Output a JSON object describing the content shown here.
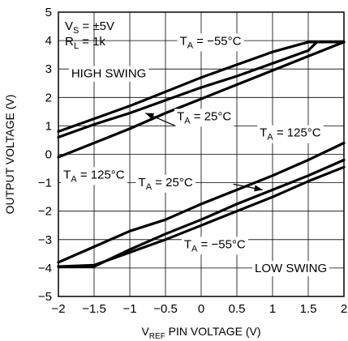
{
  "chart_data": {
    "type": "line",
    "xlabel": {
      "main": "V",
      "sub": "REF",
      "rest": " PIN VOLTAGE (V)"
    },
    "ylabel": "OUTPUT VOLTAGE (V)",
    "xlim": [
      -2,
      2
    ],
    "ylim": [
      -5,
      5
    ],
    "x_ticks": [
      -2,
      -1.5,
      -1,
      -0.5,
      0,
      0.5,
      1,
      1.5,
      2
    ],
    "x_tick_labels": [
      "−2",
      "−1.5",
      "−1",
      "−0.5",
      "0",
      "0.5",
      "1",
      "1.5",
      "2"
    ],
    "y_ticks": [
      -5,
      -4,
      -3,
      -2,
      -1,
      0,
      1,
      2,
      3,
      4,
      5
    ],
    "y_tick_labels": [
      "−5",
      "−4",
      "−3",
      "−2",
      "−1",
      "0",
      "1",
      "2",
      "3",
      "4",
      "5"
    ],
    "grid": true,
    "conditions": [
      {
        "main": "V",
        "sub": "S",
        "rest": " = ±5V"
      },
      {
        "main": "R",
        "sub": "L",
        "rest": " = 1k"
      }
    ],
    "series": [
      {
        "group": "high",
        "temp": "−55°C",
        "x": [
          -2,
          -1.5,
          -1,
          -0.5,
          0,
          0.5,
          1,
          1.5,
          2
        ],
        "y": [
          0.8,
          1.25,
          1.7,
          2.2,
          2.7,
          3.15,
          3.6,
          3.95,
          3.95
        ]
      },
      {
        "group": "high",
        "temp": "25°C",
        "x": [
          -2,
          -1.5,
          -1,
          -0.5,
          0,
          0.5,
          1,
          1.5,
          1.62,
          2
        ],
        "y": [
          0.6,
          1.05,
          1.45,
          1.9,
          2.35,
          2.75,
          3.2,
          3.65,
          3.95,
          3.95
        ]
      },
      {
        "group": "high",
        "temp": "125°C",
        "x": [
          -2,
          -1.5,
          -1,
          -0.5,
          0,
          0.5,
          1,
          1.5,
          2
        ],
        "y": [
          -0.1,
          0.4,
          0.9,
          1.45,
          1.95,
          2.45,
          2.95,
          3.45,
          3.95
        ]
      },
      {
        "group": "low",
        "temp": "125°C",
        "x": [
          -2,
          -1.5,
          -1,
          -0.5,
          0,
          0.5,
          1,
          1.5,
          2
        ],
        "y": [
          -3.8,
          -3.25,
          -2.7,
          -2.3,
          -1.75,
          -1.25,
          -0.75,
          -0.2,
          0.4
        ]
      },
      {
        "group": "low",
        "temp": "25°C",
        "x": [
          -2,
          -1.5,
          -1,
          -0.5,
          0,
          0.5,
          1,
          1.5,
          2
        ],
        "y": [
          -3.95,
          -3.95,
          -3.35,
          -2.8,
          -2.3,
          -1.75,
          -1.25,
          -0.75,
          -0.2
        ]
      },
      {
        "group": "low",
        "temp": "−55°C",
        "x": [
          -2,
          -1.5,
          -1,
          -0.5,
          0,
          0.5,
          1,
          1.5,
          2
        ],
        "y": [
          -3.95,
          -3.9,
          -3.45,
          -3.0,
          -2.5,
          -2.0,
          -1.5,
          -0.95,
          -0.45
        ]
      }
    ],
    "annotations": [
      {
        "id": "ta-neg55-high",
        "main": "T",
        "sub": "A",
        "rest": " = −55°C",
        "x": -0.3,
        "y": 3.85,
        "anchor": "start",
        "bg": true
      },
      {
        "id": "ta-25-high",
        "main": "T",
        "sub": "A",
        "rest": " = 25°C",
        "x": -0.34,
        "y": 1.2,
        "anchor": "start",
        "bg": true
      },
      {
        "id": "ta-125-right",
        "main": "T",
        "sub": "A",
        "rest": " = 125°C",
        "x": 0.82,
        "y": 0.62,
        "anchor": "start",
        "bg": true
      },
      {
        "id": "ta-125-left",
        "main": "T",
        "sub": "A",
        "rest": " = 125°C",
        "x": -1.93,
        "y": -0.85,
        "anchor": "start",
        "bg": true
      },
      {
        "id": "ta-25-low",
        "main": "T",
        "sub": "A",
        "rest": " = 25°C",
        "x": -0.88,
        "y": -1.12,
        "anchor": "start",
        "bg": true
      },
      {
        "id": "ta-neg55-low",
        "main": "T",
        "sub": "A",
        "rest": " = −55°C",
        "x": -0.24,
        "y": -3.3,
        "anchor": "start",
        "bg": true
      },
      {
        "id": "high-swing",
        "text": "HIGH SWING",
        "x": -1.82,
        "y": 2.7,
        "anchor": "start",
        "bg": true
      },
      {
        "id": "low-swing",
        "text": "LOW SWING",
        "x": 0.75,
        "y": -4.15,
        "anchor": "start",
        "bg": true
      }
    ],
    "arrows": [
      {
        "from": [
          -0.36,
          1.0
        ],
        "to": [
          -0.78,
          1.45
        ]
      },
      {
        "from": [
          0.45,
          -1.05
        ],
        "to": [
          0.86,
          -1.25
        ]
      }
    ]
  }
}
